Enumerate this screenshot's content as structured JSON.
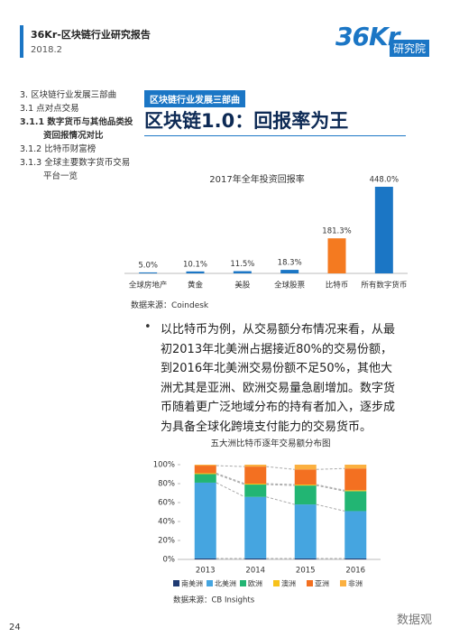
{
  "header": {
    "title": "36Kr-区块链行业研究报告",
    "date": "2018.2",
    "logo": "36Kr",
    "logo_sub": "研究院"
  },
  "toc": [
    "3. 区块链行业发展三部曲",
    "3.1 点对点交易",
    "3.1.1 数字货币与其他品类投资回报情况对比",
    "3.1.2 比特币财富榜",
    "3.1.3 全球主要数字货币交易平台一览"
  ],
  "section_tag": "区块链行业发展三部曲",
  "heading": "区块链1.0：回报率为王",
  "paragraph": "以比特币为例，从交易额分布情况来看，从最初2013年北美洲占据接近80%的交易份额，到2016年北美洲交易份额不足50%，其他大洲尤其是亚洲、欧洲交易量急剧增加。数字货币随着更广泛地域分布的持有者加入，逐步成为具备全球化跨境支付能力的交易货币。",
  "chart_data": [
    {
      "type": "bar",
      "title": "2017年全年投资回报率",
      "categories": [
        "全球房地产",
        "黄金",
        "美股",
        "全球股票",
        "比特币",
        "所有数字货币"
      ],
      "values": [
        5.0,
        10.1,
        11.5,
        18.3,
        181.3,
        448.0
      ],
      "value_labels": [
        "5.0%",
        "10.1%",
        "11.5%",
        "18.3%",
        "181.3%",
        "448.0%"
      ],
      "colors": [
        "#1b76c5",
        "#1b76c5",
        "#1b76c5",
        "#1b76c5",
        "#f47a20",
        "#1b76c5"
      ],
      "source": "数据来源：Coindesk"
    },
    {
      "type": "stacked_bar",
      "title": "五大洲比特币逐年交易额分布图",
      "categories": [
        "2013",
        "2014",
        "2015",
        "2016"
      ],
      "series": [
        {
          "name": "南美洲",
          "color": "#1f3b73",
          "values": [
            1,
            1,
            1,
            1
          ]
        },
        {
          "name": "北美洲",
          "color": "#45a5e0",
          "values": [
            80,
            65,
            57,
            50
          ]
        },
        {
          "name": "欧洲",
          "color": "#22b573",
          "values": [
            9,
            13,
            20,
            21
          ]
        },
        {
          "name": "澳洲",
          "color": "#f7c21b",
          "values": [
            1,
            1,
            1,
            1
          ]
        },
        {
          "name": "亚洲",
          "color": "#f37021",
          "values": [
            8,
            18,
            16,
            23
          ]
        },
        {
          "name": "非洲",
          "color": "#fbb040",
          "values": [
            1,
            2,
            5,
            4
          ]
        }
      ],
      "ylim": [
        0,
        100
      ],
      "yticks": [
        {
          "value": 0,
          "label": "0%"
        },
        {
          "value": 20,
          "label": "20%"
        },
        {
          "value": 40,
          "label": "40%"
        },
        {
          "value": 60,
          "label": "60%"
        },
        {
          "value": 80,
          "label": "80%"
        },
        {
          "value": 100,
          "label": "100%"
        }
      ],
      "source": "数据来源：CB Insights"
    }
  ],
  "page_number": "24",
  "watermark": "数据观"
}
